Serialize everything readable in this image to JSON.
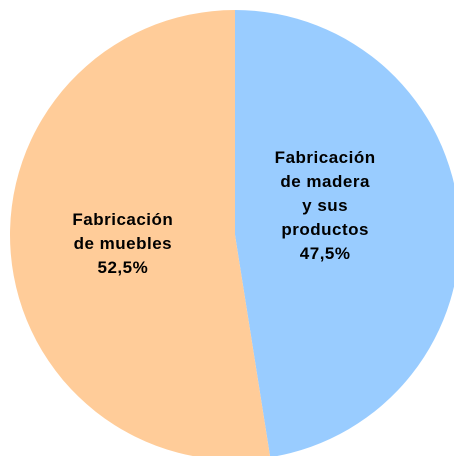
{
  "chart_data": {
    "type": "pie",
    "categories": [
      "Fabricación\nde madera\ny sus\nproductos",
      "Fabricación\nde muebles"
    ],
    "values": [
      47.5,
      52.5
    ],
    "value_labels": [
      "47,5%",
      "52,5%"
    ],
    "colors": [
      "#99ccff",
      "#ffcc99"
    ]
  }
}
